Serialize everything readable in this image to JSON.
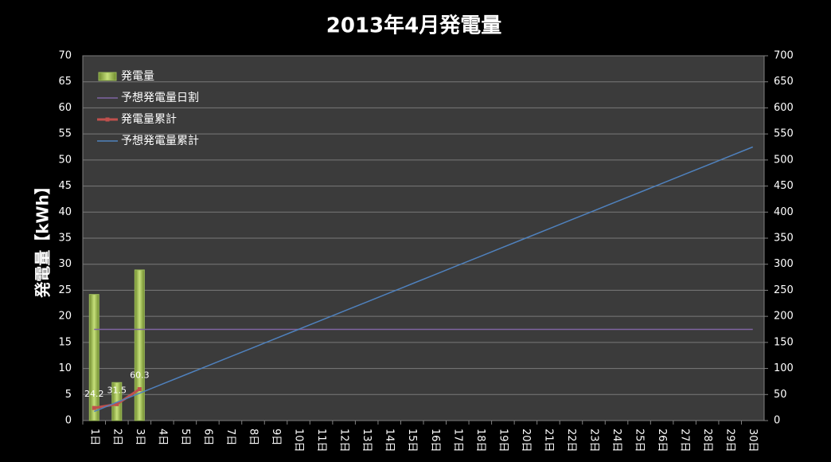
{
  "chart_data": {
    "type": "bar-line",
    "title": "2013年4月発電量",
    "y_label": "発電量【kWh】",
    "categories": [
      "1日",
      "2日",
      "3日",
      "4日",
      "5日",
      "6日",
      "7日",
      "8日",
      "9日",
      "10日",
      "11日",
      "12日",
      "13日",
      "14日",
      "15日",
      "16日",
      "17日",
      "18日",
      "19日",
      "20日",
      "21日",
      "22日",
      "23日",
      "24日",
      "25日",
      "26日",
      "27日",
      "28日",
      "29日",
      "30日"
    ],
    "series": [
      {
        "name": "発電量",
        "kind": "bar",
        "color": "#9bbb59",
        "values": [
          24.2,
          7.3,
          28.9,
          null,
          null,
          null,
          null,
          null,
          null,
          null,
          null,
          null,
          null,
          null,
          null,
          null,
          null,
          null,
          null,
          null,
          null,
          null,
          null,
          null,
          null,
          null,
          null,
          null,
          null,
          null
        ]
      },
      {
        "name": "予想発電量日割",
        "kind": "line",
        "color": "#8064a2",
        "values": [
          17.5,
          17.5,
          17.5,
          17.5,
          17.5,
          17.5,
          17.5,
          17.5,
          17.5,
          17.5,
          17.5,
          17.5,
          17.5,
          17.5,
          17.5,
          17.5,
          17.5,
          17.5,
          17.5,
          17.5,
          17.5,
          17.5,
          17.5,
          17.5,
          17.5,
          17.5,
          17.5,
          17.5,
          17.5,
          17.5
        ]
      },
      {
        "name": "発電量累計",
        "kind": "line",
        "axis": "y2",
        "color": "#c0504d",
        "markers": true,
        "data_labels": true,
        "values": [
          24.2,
          31.5,
          60.3,
          null,
          null,
          null,
          null,
          null,
          null,
          null,
          null,
          null,
          null,
          null,
          null,
          null,
          null,
          null,
          null,
          null,
          null,
          null,
          null,
          null,
          null,
          null,
          null,
          null,
          null,
          null
        ]
      },
      {
        "name": "予想発電量累計",
        "kind": "line",
        "axis": "y2",
        "color": "#4f81bd",
        "values": [
          17.5,
          35,
          52.5,
          70,
          87.5,
          105,
          122.5,
          140,
          157.5,
          175,
          192.5,
          210,
          227.5,
          245,
          262.5,
          280,
          297.5,
          315,
          332.5,
          350,
          367.5,
          385,
          402.5,
          420,
          437.5,
          455,
          472.5,
          490,
          507.5,
          525
        ]
      }
    ],
    "ylim": [
      0,
      70
    ],
    "yticks": [
      0,
      5,
      10,
      15,
      20,
      25,
      30,
      35,
      40,
      45,
      50,
      55,
      60,
      65,
      70
    ],
    "y2lim": [
      0,
      700
    ],
    "y2ticks": [
      0,
      50,
      100,
      150,
      200,
      250,
      300,
      350,
      400,
      450,
      500,
      550,
      600,
      650,
      700
    ],
    "grid": true,
    "legend": "top-left"
  }
}
